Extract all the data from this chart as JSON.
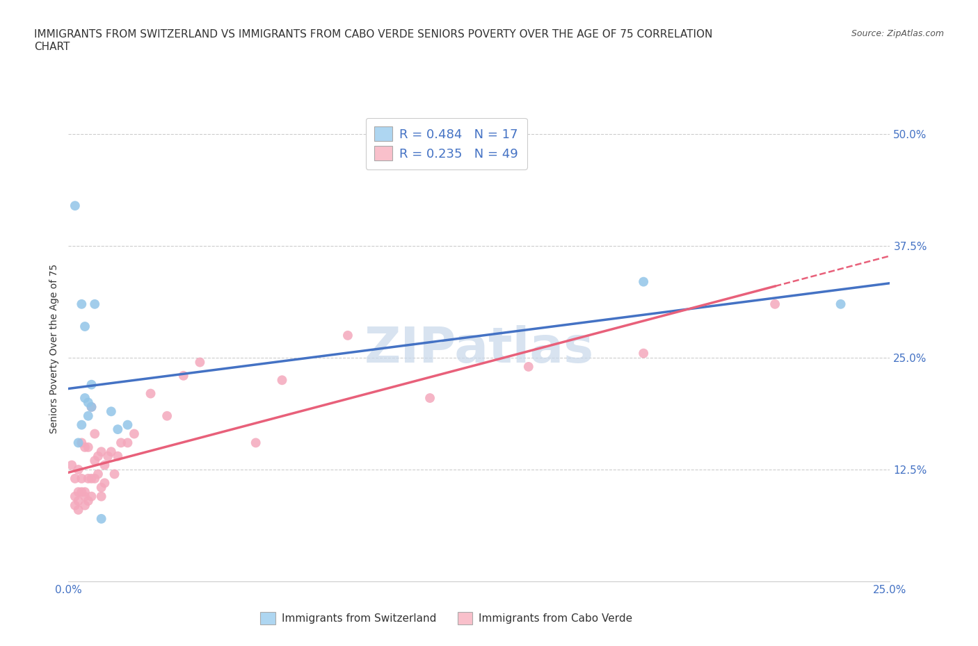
{
  "title_line1": "IMMIGRANTS FROM SWITZERLAND VS IMMIGRANTS FROM CABO VERDE SENIORS POVERTY OVER THE AGE OF 75 CORRELATION",
  "title_line2": "CHART",
  "source": "Source: ZipAtlas.com",
  "ylabel": "Seniors Poverty Over the Age of 75",
  "xlim": [
    0.0,
    0.25
  ],
  "ylim": [
    0.0,
    0.52
  ],
  "xticks": [
    0.0,
    0.05,
    0.1,
    0.15,
    0.2,
    0.25
  ],
  "xticklabels": [
    "0.0%",
    "",
    "",
    "",
    "",
    "25.0%"
  ],
  "ytick_positions": [
    0.0,
    0.125,
    0.25,
    0.375,
    0.5
  ],
  "yticklabels_right": [
    "",
    "12.5%",
    "25.0%",
    "37.5%",
    "50.0%"
  ],
  "switzerland_color": "#92C5E8",
  "caboverde_color": "#F4A8BC",
  "trend_switzerland_color": "#4472C4",
  "trend_caboverde_color": "#E8607A",
  "tick_label_color": "#4472C4",
  "R_switzerland": 0.484,
  "N_switzerland": 17,
  "R_caboverde": 0.235,
  "N_caboverde": 49,
  "switzerland_x": [
    0.002,
    0.003,
    0.004,
    0.004,
    0.005,
    0.005,
    0.006,
    0.006,
    0.007,
    0.007,
    0.008,
    0.01,
    0.013,
    0.015,
    0.018,
    0.175,
    0.235
  ],
  "switzerland_y": [
    0.42,
    0.155,
    0.175,
    0.31,
    0.205,
    0.285,
    0.2,
    0.185,
    0.195,
    0.22,
    0.31,
    0.07,
    0.19,
    0.17,
    0.175,
    0.335,
    0.31
  ],
  "caboverde_x": [
    0.001,
    0.002,
    0.002,
    0.002,
    0.003,
    0.003,
    0.003,
    0.003,
    0.004,
    0.004,
    0.004,
    0.005,
    0.005,
    0.005,
    0.005,
    0.006,
    0.006,
    0.006,
    0.007,
    0.007,
    0.007,
    0.008,
    0.008,
    0.008,
    0.009,
    0.009,
    0.01,
    0.01,
    0.01,
    0.011,
    0.011,
    0.012,
    0.013,
    0.014,
    0.015,
    0.016,
    0.018,
    0.02,
    0.025,
    0.03,
    0.035,
    0.04,
    0.057,
    0.065,
    0.085,
    0.11,
    0.14,
    0.175,
    0.215
  ],
  "caboverde_y": [
    0.13,
    0.085,
    0.095,
    0.115,
    0.08,
    0.09,
    0.1,
    0.125,
    0.1,
    0.115,
    0.155,
    0.085,
    0.095,
    0.1,
    0.15,
    0.09,
    0.115,
    0.15,
    0.095,
    0.115,
    0.195,
    0.115,
    0.135,
    0.165,
    0.12,
    0.14,
    0.095,
    0.105,
    0.145,
    0.11,
    0.13,
    0.14,
    0.145,
    0.12,
    0.14,
    0.155,
    0.155,
    0.165,
    0.21,
    0.185,
    0.23,
    0.245,
    0.155,
    0.225,
    0.275,
    0.205,
    0.24,
    0.255,
    0.31
  ],
  "grid_color": "#CCCCCC",
  "background_color": "#FFFFFF",
  "title_fontsize": 11,
  "axis_label_fontsize": 10,
  "tick_fontsize": 11,
  "legend_fontsize": 13,
  "watermark_text": "ZIPatlas",
  "watermark_color": "#C8D8EA",
  "legend_box_color_switzerland": "#AED6F1",
  "legend_box_color_caboverde": "#F9C0CB"
}
